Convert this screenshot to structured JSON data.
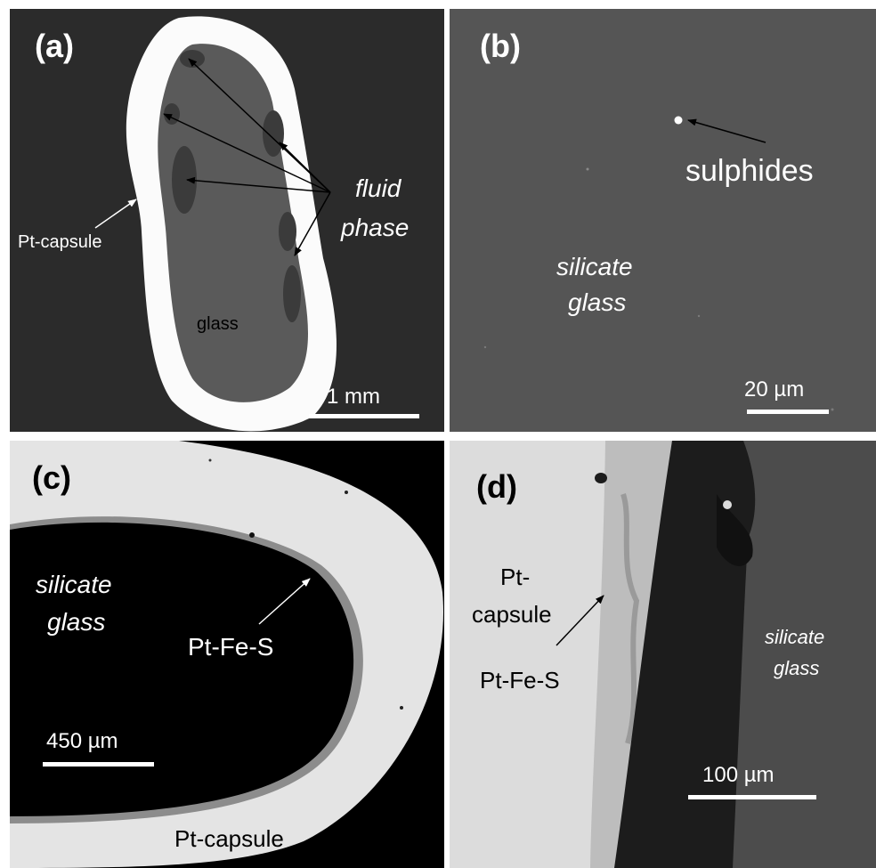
{
  "panels": {
    "a": {
      "label": "(a)",
      "annotations": {
        "fluid_phase": [
          "fluid",
          "phase"
        ],
        "pt_capsule": "Pt-capsule",
        "glass": "glass"
      },
      "scale_bar": "1 mm",
      "colors": {
        "background": "#2b2b2b",
        "capsule": "#fbfbfb",
        "glass": "#5a5a5a",
        "fluid": "#3a3a3a"
      }
    },
    "b": {
      "label": "(b)",
      "annotations": {
        "sulphides": "sulphides",
        "silicate_glass": [
          "silicate",
          "glass"
        ]
      },
      "scale_bar": "20 µm",
      "colors": {
        "background": "#555555"
      }
    },
    "c": {
      "label": "(c)",
      "annotations": {
        "silicate_glass": [
          "silicate",
          "glass"
        ],
        "pt_fe_s": "Pt-Fe-S",
        "pt_capsule": "Pt-capsule"
      },
      "scale_bar": "450 µm",
      "colors": {
        "background": "#000000",
        "capsule": "#e4e4e4"
      }
    },
    "d": {
      "label": "(d)",
      "annotations": {
        "pt_capsule": [
          "Pt-",
          "capsule"
        ],
        "pt_fe_s": "Pt-Fe-S",
        "silicate_glass": [
          "silicate",
          "glass"
        ]
      },
      "scale_bar": "100 µm",
      "colors": {
        "capsule": "#dcdcdc",
        "dark_band": "#1c1c1c",
        "glass": "#4c4c4c"
      }
    }
  }
}
